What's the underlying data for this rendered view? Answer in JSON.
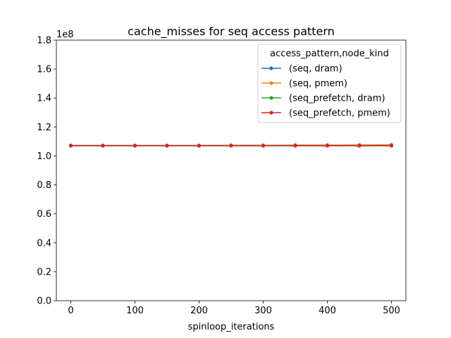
{
  "chart_data": {
    "type": "line",
    "title": "cache_misses for seq access pattern",
    "xlabel": "spinloop_iterations",
    "ylabel": "",
    "y_offset_label": "1e8",
    "y_scale": 100000000,
    "xlim": [
      -22.5,
      522.5
    ],
    "ylim": [
      0,
      180000000
    ],
    "x_ticks": [
      0,
      100,
      200,
      300,
      400,
      500
    ],
    "x_tick_labels": [
      "0",
      "100",
      "200",
      "300",
      "400",
      "500"
    ],
    "y_ticks": [
      0,
      20000000,
      40000000,
      60000000,
      80000000,
      100000000,
      120000000,
      140000000,
      160000000,
      180000000
    ],
    "y_tick_labels": [
      "0.0",
      "0.2",
      "0.4",
      "0.6",
      "0.8",
      "1.0",
      "1.2",
      "1.4",
      "1.6",
      "1.8"
    ],
    "grid": false,
    "legend": {
      "title": "access_pattern,node_kind",
      "placement": "top-right"
    },
    "x": [
      0,
      50,
      100,
      150,
      200,
      250,
      300,
      350,
      400,
      450,
      500
    ],
    "series": [
      {
        "name": "(seq, dram)",
        "color": "#1f77b4",
        "values": [
          107000000,
          107000000,
          107000000,
          107000000,
          107000000,
          107000000,
          107000000,
          107000000,
          107000000,
          107000000,
          107000000
        ]
      },
      {
        "name": "(seq, pmem)",
        "color": "#ff7f0e",
        "values": [
          107300000,
          107300000,
          107300000,
          107300000,
          107300000,
          107400000,
          107400000,
          107500000,
          107500000,
          107600000,
          107700000
        ]
      },
      {
        "name": "(seq_prefetch, dram)",
        "color": "#2ca02c",
        "values": [
          107100000,
          107100000,
          107100000,
          107100000,
          107100000,
          107100000,
          107100000,
          107100000,
          107100000,
          107100000,
          107100000
        ]
      },
      {
        "name": "(seq_prefetch, pmem)",
        "color": "#d62728",
        "values": [
          107200000,
          107200000,
          107200000,
          107200000,
          107200000,
          107200000,
          107200000,
          107200000,
          107200000,
          107200000,
          107200000
        ]
      }
    ]
  }
}
